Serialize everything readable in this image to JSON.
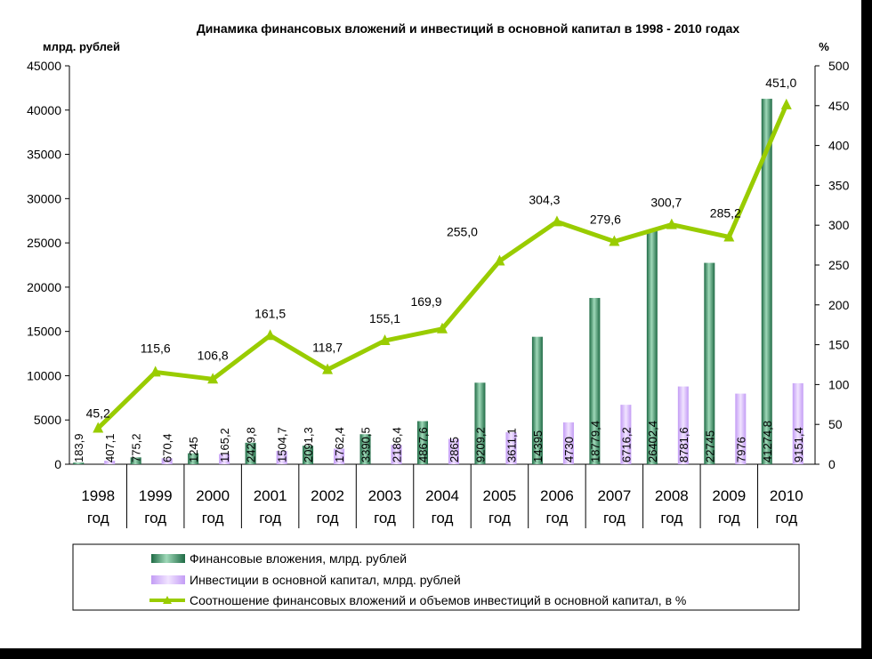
{
  "chart_data": {
    "type": "bar",
    "title": "Динамика финансовых вложений и инвестиций в основной капитал в 1998 - 2010 годах",
    "ylabel_left": "млрд. рублей",
    "ylabel_right": "%",
    "ylim_left": [
      0,
      45000
    ],
    "ylim_right": [
      0,
      500
    ],
    "yticks_left": [
      "0",
      "5000",
      "10000",
      "15000",
      "20000",
      "25000",
      "30000",
      "35000",
      "40000",
      "45000"
    ],
    "yticks_right": [
      "0",
      "50",
      "100",
      "150",
      "200",
      "250",
      "300",
      "350",
      "400",
      "450",
      "500"
    ],
    "categories": [
      [
        "1998",
        "год"
      ],
      [
        "1999",
        "год"
      ],
      [
        "2000",
        "год"
      ],
      [
        "2001",
        "год"
      ],
      [
        "2002",
        "год"
      ],
      [
        "2003",
        "год"
      ],
      [
        "2004",
        "год"
      ],
      [
        "2005",
        "год"
      ],
      [
        "2006",
        "год"
      ],
      [
        "2007",
        "год"
      ],
      [
        "2008",
        "год"
      ],
      [
        "2009",
        "год"
      ],
      [
        "2010",
        "год"
      ]
    ],
    "grid": false,
    "legend_position": "bottom",
    "series": [
      {
        "name": "Финансовые вложения, млрд. рублей",
        "kind": "bar",
        "axis": "left",
        "color": "#2e8b57",
        "values": [
          183.9,
          775.2,
          1245,
          2429.8,
          2091.3,
          3390.5,
          4867.6,
          9209.2,
          14395,
          18779.4,
          26402.4,
          22745,
          41274.8
        ],
        "labels": [
          "183,9",
          "775,2",
          "1245",
          "2429,8",
          "2091,3",
          "3390,5",
          "4867,6",
          "9209,2",
          "14395",
          "18779,4",
          "26402,4",
          "22745",
          "41274,8"
        ]
      },
      {
        "name": "Инвестиции в основной капитал, млрд. рублей",
        "kind": "bar",
        "axis": "left",
        "color": "#cc99ff",
        "values": [
          407.1,
          670.4,
          1165.2,
          1504.7,
          1762.4,
          2186.4,
          2865,
          3611.1,
          4730,
          6716.2,
          8781.6,
          7976,
          9151.4
        ],
        "labels": [
          "407,1",
          "670,4",
          "1165,2",
          "1504,7",
          "1762,4",
          "2186,4",
          "2865",
          "3611,1",
          "4730",
          "6716,2",
          "8781,6",
          "7976",
          "9151,4"
        ]
      },
      {
        "name": "Соотношение финансовых вложений и объемов инвестиций в основной капитал, в %",
        "kind": "line",
        "axis": "right",
        "color": "#99cc00",
        "values": [
          45.2,
          115.6,
          106.8,
          161.5,
          118.7,
          155.1,
          169.9,
          255.0,
          304.3,
          279.6,
          300.7,
          285.2,
          451.0
        ],
        "labels": [
          "45,2",
          "115,6",
          "106,8",
          "161,5",
          "118,7",
          "155,1",
          "169,9",
          "255,0",
          "304,3",
          "279,6",
          "300,7",
          "285,2",
          "451,0"
        ]
      }
    ]
  }
}
